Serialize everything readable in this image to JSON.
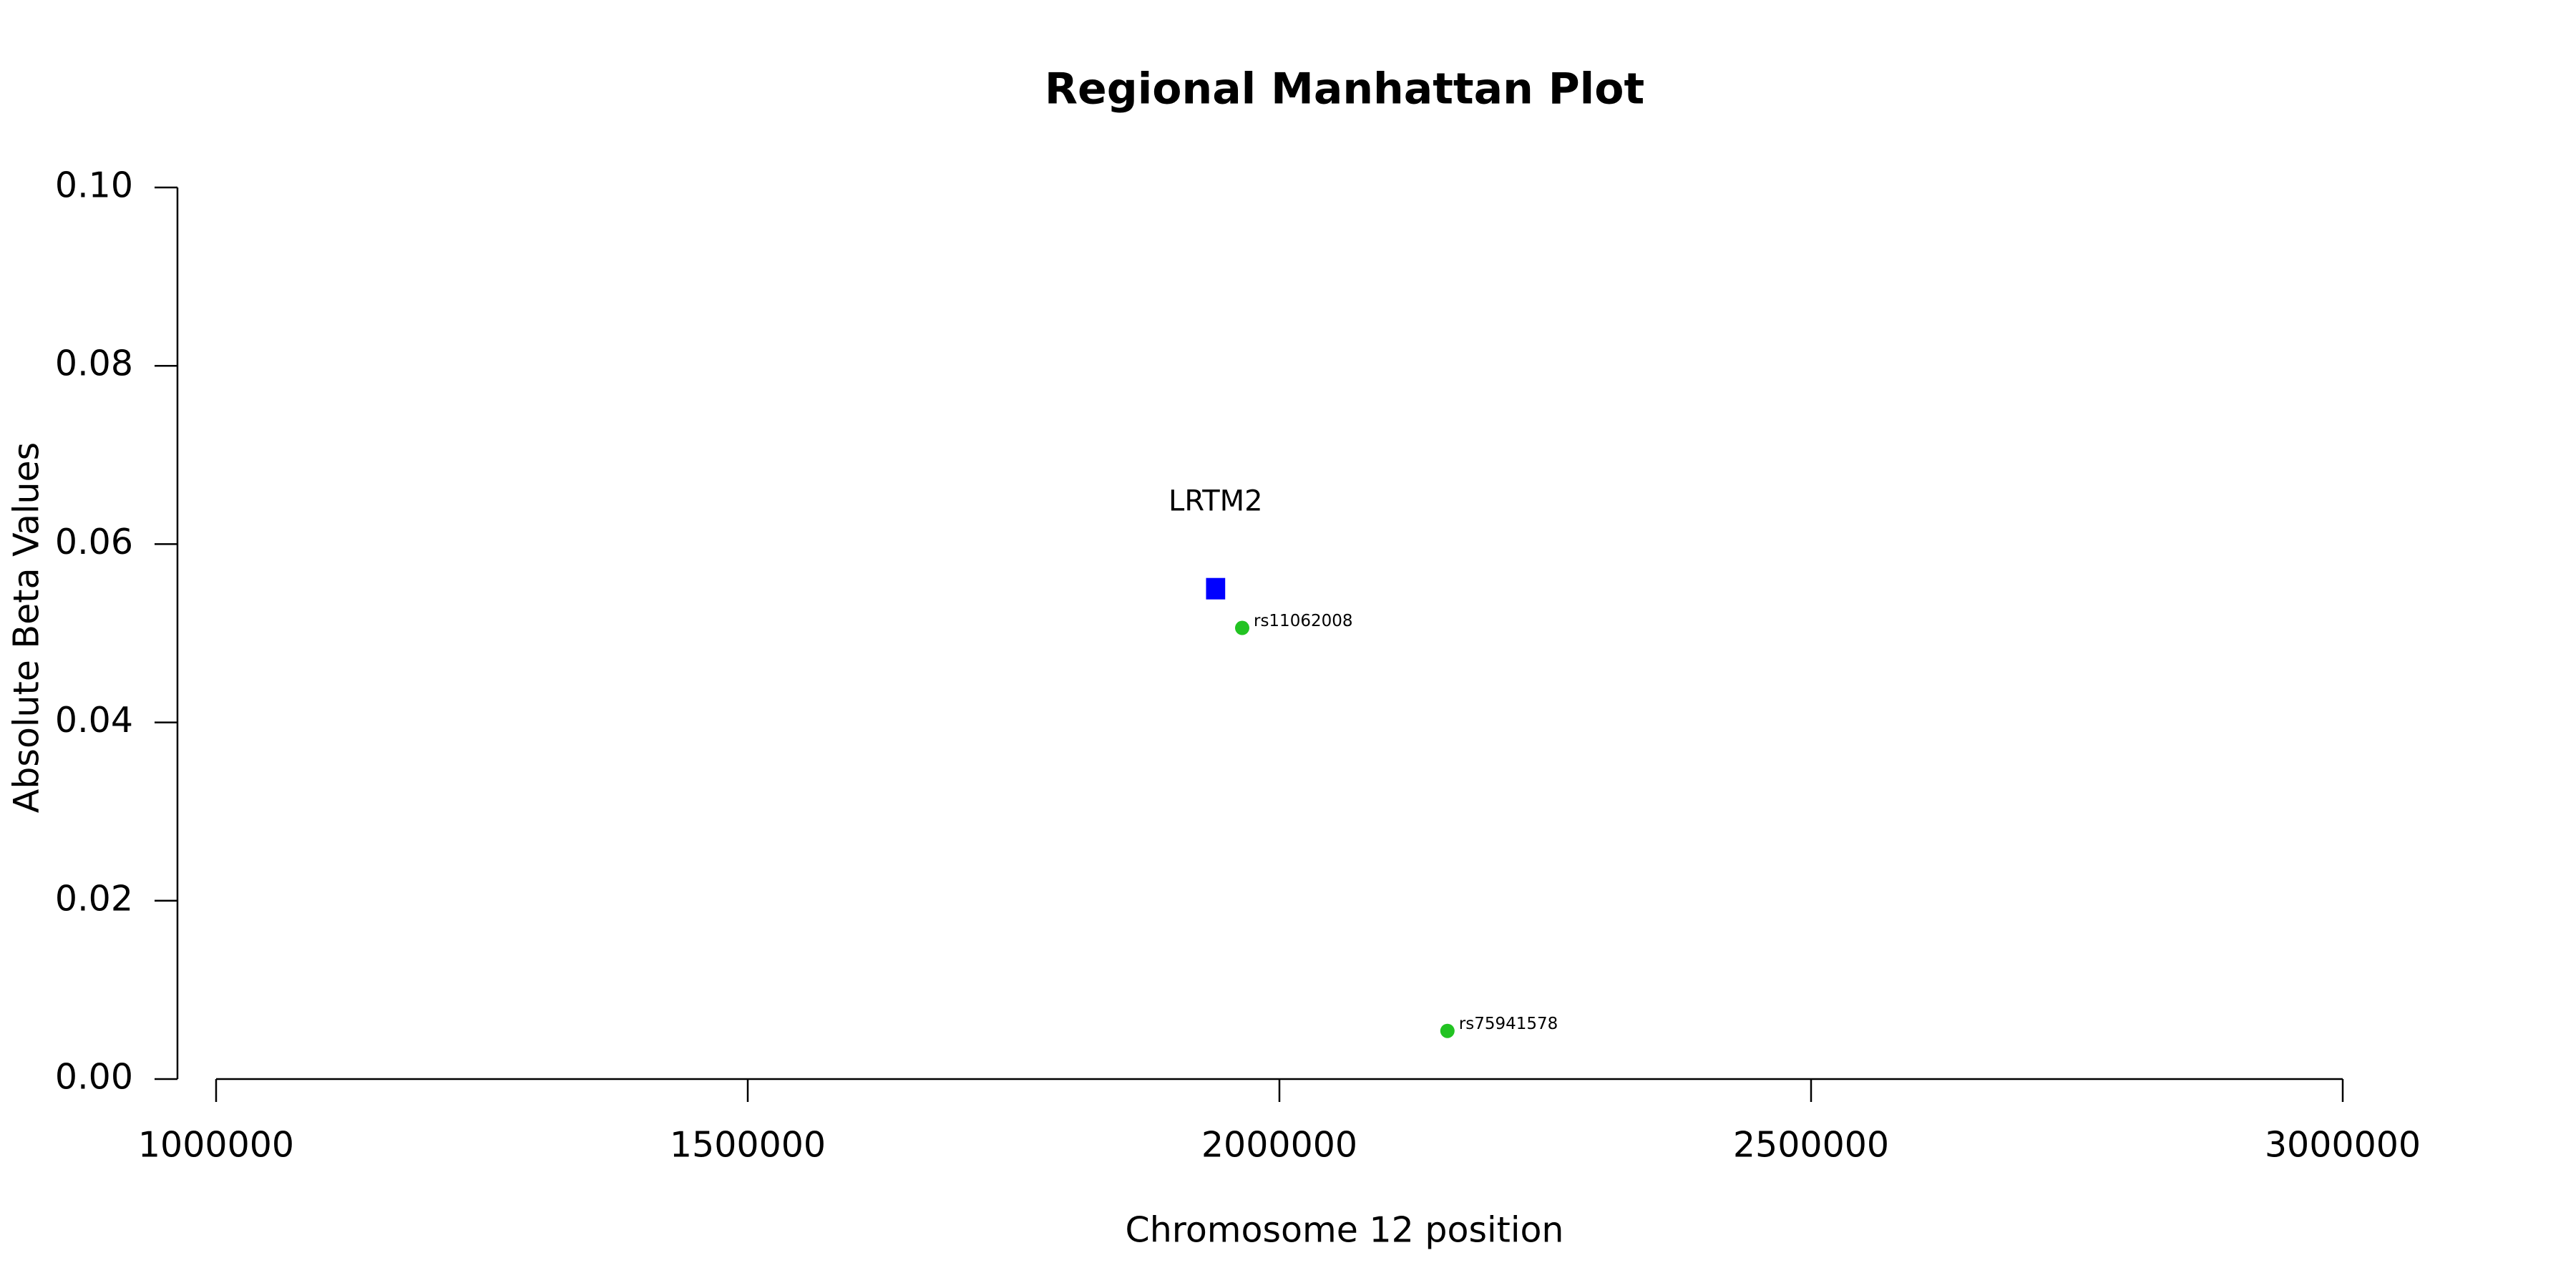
{
  "chart_data": {
    "type": "scatter",
    "title": "Regional Manhattan Plot",
    "x_label": "Chromosome 12 position",
    "y_label": "Absolute Beta Values",
    "x": [
      1965000,
      2158000
    ],
    "values": [
      0.0506,
      0.0054
    ],
    "point_labels": [
      "rs11062008",
      "rs75941578"
    ],
    "color": "#22c322",
    "genes": [
      {
        "label": "LRTM2",
        "start": 1931000,
        "end": 1949000,
        "value": 0.055,
        "color": "#0000ff"
      }
    ],
    "xlim": [
      1000000,
      3000000
    ],
    "xticks": [
      1000000,
      1500000,
      2000000,
      2500000,
      3000000
    ],
    "ylim": [
      0,
      0.1
    ],
    "yticks": [
      {
        "value": 0,
        "label": "0.00"
      },
      {
        "value": 0.02,
        "label": "0.02"
      },
      {
        "value": 0.04,
        "label": "0.04"
      },
      {
        "value": 0.06,
        "label": "0.06"
      },
      {
        "value": 0.08,
        "label": "0.08"
      },
      {
        "value": 0.1,
        "label": "0.10"
      }
    ]
  }
}
